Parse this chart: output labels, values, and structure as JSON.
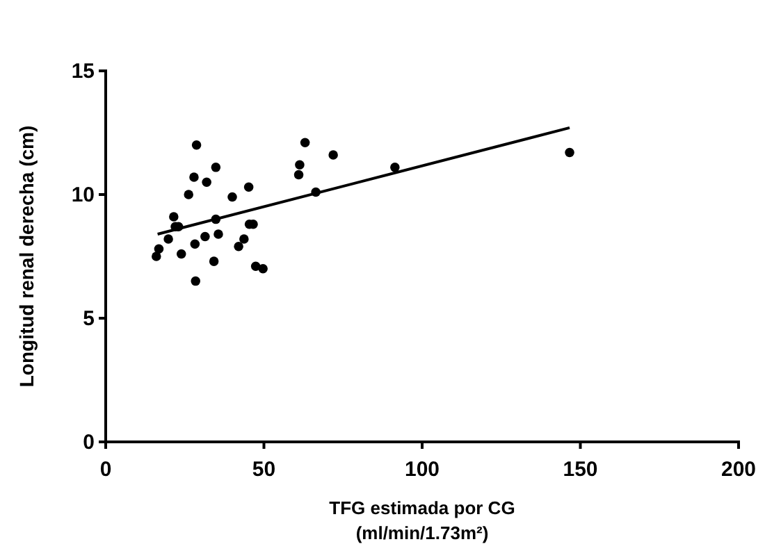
{
  "chart_data": {
    "type": "scatter",
    "xlabel": "TFG estimada por CG\n(ml/min/1.73m²)",
    "ylabel": "Longitud renal derecha (cm)",
    "xlim": [
      0,
      200
    ],
    "xticks": [
      0,
      50,
      100,
      150,
      200
    ],
    "ylim": [
      0,
      15
    ],
    "yticks": [
      0,
      5,
      10,
      15
    ],
    "grid": false,
    "marker": "circle",
    "series": [
      {
        "color": "#000000",
        "x": [
          16,
          16.8,
          19.8,
          21.5,
          22,
          23,
          23.9,
          26.2,
          27.9,
          28.2,
          28.4,
          28.7,
          31.4,
          31.9,
          34.2,
          34.8,
          34.8,
          35.6,
          40,
          42,
          43.7,
          45.2,
          45.4,
          46.6,
          47.4,
          49.7,
          61,
          61.3,
          63,
          66.4,
          71.9,
          91.4,
          146.6
        ],
        "values": [
          7.5,
          7.8,
          8.2,
          9.1,
          8.7,
          8.7,
          7.6,
          10,
          10.7,
          8,
          6.5,
          12,
          8.3,
          10.5,
          7.3,
          11.1,
          9,
          8.4,
          9.9,
          7.9,
          8.2,
          10.3,
          8.8,
          8.8,
          7.1,
          7,
          10.8,
          11.2,
          12.1,
          10.1,
          11.6,
          11.1,
          11.7
        ]
      },
      {
        "type": "line",
        "color": "#000000",
        "x": [
          16.4,
          146.6
        ],
        "values": [
          8.4,
          12.7
        ],
        "line_style": "solid",
        "marker": "none"
      }
    ]
  }
}
